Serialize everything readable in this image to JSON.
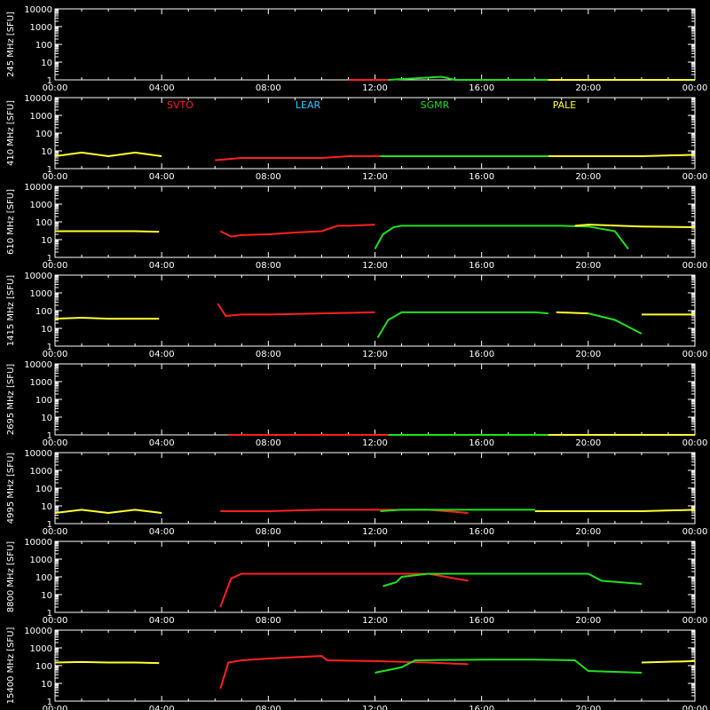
{
  "chart_data": {
    "type": "line",
    "y_unit": "[SFU]",
    "y_scale": "log",
    "ylim": [
      1,
      10000
    ],
    "y_ticks": [
      "1",
      "10",
      "100",
      "1000",
      "10000"
    ],
    "x_ticks": [
      "00:00",
      "04:00",
      "08:00",
      "12:00",
      "16:00",
      "20:00",
      "00:00"
    ],
    "xlim_hours": [
      0,
      24
    ],
    "stations": [
      {
        "name": "SVTO",
        "color": "#ff2020"
      },
      {
        "name": "LEAR",
        "color": "#30c8ff"
      },
      {
        "name": "SGMR",
        "color": "#20e020"
      },
      {
        "name": "PALE",
        "color": "#ffff30"
      }
    ],
    "panels": [
      {
        "label": "245 MHz",
        "series": [
          {
            "name": "SVTO",
            "points": [
              [
                11.0,
                1
              ],
              [
                12.5,
                1
              ]
            ]
          },
          {
            "name": "SGMR",
            "points": [
              [
                12.5,
                1
              ],
              [
                14.5,
                1.5
              ],
              [
                15,
                1
              ],
              [
                18.5,
                1
              ]
            ]
          },
          {
            "name": "PALE",
            "points": [
              [
                18.5,
                1
              ],
              [
                24,
                1
              ]
            ]
          }
        ]
      },
      {
        "label": "410 MHz",
        "series": [
          {
            "name": "PALE",
            "points": [
              [
                0,
                5
              ],
              [
                1,
                8
              ],
              [
                2,
                5
              ],
              [
                3,
                8
              ],
              [
                4,
                5
              ]
            ]
          },
          {
            "name": "SVTO",
            "points": [
              [
                6.0,
                3
              ],
              [
                7,
                4
              ],
              [
                8,
                4
              ],
              [
                9,
                4
              ],
              [
                10,
                4
              ],
              [
                11,
                5
              ],
              [
                12.2,
                5
              ]
            ]
          },
          {
            "name": "SGMR",
            "points": [
              [
                12.2,
                5
              ],
              [
                14,
                5
              ],
              [
                16,
                5
              ],
              [
                18,
                5
              ],
              [
                18.5,
                5
              ]
            ]
          },
          {
            "name": "PALE",
            "points": [
              [
                18.5,
                5
              ],
              [
                20,
                5
              ],
              [
                22,
                5
              ],
              [
                24,
                6
              ]
            ]
          }
        ]
      },
      {
        "label": "610 MHz",
        "series": [
          {
            "name": "PALE",
            "points": [
              [
                0,
                30
              ],
              [
                1,
                30
              ],
              [
                2,
                30
              ],
              [
                3,
                30
              ],
              [
                3.9,
                28
              ]
            ]
          },
          {
            "name": "SVTO",
            "points": [
              [
                6.2,
                30
              ],
              [
                6.6,
                15
              ],
              [
                7,
                18
              ],
              [
                8,
                20
              ],
              [
                9,
                25
              ],
              [
                10,
                30
              ],
              [
                10.6,
                60
              ],
              [
                11,
                60
              ],
              [
                12,
                70
              ]
            ]
          },
          {
            "name": "SGMR",
            "points": [
              [
                12,
                3
              ],
              [
                12.3,
                20
              ],
              [
                12.7,
                50
              ],
              [
                13,
                60
              ],
              [
                14,
                60
              ],
              [
                16,
                60
              ],
              [
                18,
                60
              ],
              [
                19,
                60
              ],
              [
                20,
                55
              ],
              [
                21,
                30
              ],
              [
                21.5,
                3
              ]
            ]
          },
          {
            "name": "PALE",
            "points": [
              [
                19.5,
                60
              ],
              [
                20,
                70
              ],
              [
                22,
                55
              ],
              [
                24,
                50
              ]
            ]
          }
        ]
      },
      {
        "label": "1415 MHz",
        "series": [
          {
            "name": "PALE",
            "points": [
              [
                0,
                35
              ],
              [
                1,
                40
              ],
              [
                2,
                35
              ],
              [
                3,
                35
              ],
              [
                3.9,
                35
              ]
            ]
          },
          {
            "name": "SVTO",
            "points": [
              [
                6.1,
                250
              ],
              [
                6.4,
                50
              ],
              [
                7,
                60
              ],
              [
                8,
                60
              ],
              [
                10,
                70
              ],
              [
                12,
                80
              ]
            ]
          },
          {
            "name": "SGMR",
            "points": [
              [
                12.1,
                3
              ],
              [
                12.5,
                30
              ],
              [
                13,
                80
              ],
              [
                14,
                80
              ],
              [
                16,
                80
              ],
              [
                18,
                80
              ],
              [
                18.5,
                70
              ]
            ]
          },
          {
            "name": "PALE",
            "points": [
              [
                18.8,
                80
              ],
              [
                20,
                70
              ]
            ]
          },
          {
            "name": "SGMR",
            "points": [
              [
                20,
                70
              ],
              [
                21,
                30
              ],
              [
                22,
                5
              ]
            ]
          },
          {
            "name": "PALE",
            "points": [
              [
                22,
                60
              ],
              [
                24,
                60
              ]
            ]
          }
        ]
      },
      {
        "label": "2695 MHz",
        "series": [
          {
            "name": "SVTO",
            "points": [
              [
                6.5,
                1
              ],
              [
                12.5,
                1
              ]
            ]
          },
          {
            "name": "SGMR",
            "points": [
              [
                12.5,
                1
              ],
              [
                18.5,
                1
              ]
            ]
          },
          {
            "name": "PALE",
            "points": [
              [
                18.5,
                1
              ],
              [
                24,
                1
              ]
            ]
          }
        ]
      },
      {
        "label": "4995 MHz",
        "series": [
          {
            "name": "PALE",
            "points": [
              [
                0,
                4
              ],
              [
                1,
                6
              ],
              [
                2,
                4
              ],
              [
                3,
                6
              ],
              [
                4,
                4
              ]
            ]
          },
          {
            "name": "SVTO",
            "points": [
              [
                6.2,
                5
              ],
              [
                8,
                5
              ],
              [
                10,
                6
              ],
              [
                12,
                6
              ],
              [
                14,
                6
              ],
              [
                15.5,
                4
              ]
            ]
          },
          {
            "name": "SGMR",
            "points": [
              [
                12.2,
                5
              ],
              [
                13,
                6
              ],
              [
                16,
                6
              ],
              [
                18,
                6
              ]
            ]
          },
          {
            "name": "PALE",
            "points": [
              [
                18,
                5
              ],
              [
                20,
                5
              ],
              [
                22,
                5
              ],
              [
                24,
                6
              ]
            ]
          }
        ]
      },
      {
        "label": "8800 MHz",
        "series": [
          {
            "name": "SVTO",
            "points": [
              [
                6.2,
                2
              ],
              [
                6.6,
                80
              ],
              [
                7,
                150
              ],
              [
                8,
                150
              ],
              [
                10,
                150
              ],
              [
                12,
                150
              ],
              [
                14,
                150
              ],
              [
                15.5,
                60
              ]
            ]
          },
          {
            "name": "SGMR",
            "points": [
              [
                12.3,
                30
              ],
              [
                12.8,
                50
              ],
              [
                13,
                100
              ],
              [
                14,
                150
              ],
              [
                16,
                150
              ],
              [
                18,
                150
              ],
              [
                20,
                150
              ],
              [
                20.5,
                60
              ],
              [
                22,
                40
              ]
            ]
          }
        ]
      },
      {
        "label": "15400 MHz",
        "series": [
          {
            "name": "PALE",
            "points": [
              [
                0,
                150
              ],
              [
                1,
                160
              ],
              [
                2,
                150
              ],
              [
                3,
                150
              ],
              [
                3.9,
                140
              ]
            ]
          },
          {
            "name": "SVTO",
            "points": [
              [
                6.2,
                5
              ],
              [
                6.5,
                150
              ],
              [
                7,
                200
              ],
              [
                8,
                250
              ],
              [
                9,
                300
              ],
              [
                10,
                350
              ],
              [
                10.2,
                200
              ],
              [
                12,
                180
              ],
              [
                14,
                150
              ],
              [
                15.5,
                120
              ]
            ]
          },
          {
            "name": "SGMR",
            "points": [
              [
                12,
                40
              ],
              [
                13,
                80
              ],
              [
                13.5,
                200
              ],
              [
                16,
                220
              ],
              [
                18,
                220
              ],
              [
                19.5,
                200
              ],
              [
                20,
                50
              ],
              [
                22,
                40
              ]
            ]
          },
          {
            "name": "PALE",
            "points": [
              [
                22,
                150
              ],
              [
                24,
                180
              ]
            ]
          }
        ]
      }
    ]
  }
}
